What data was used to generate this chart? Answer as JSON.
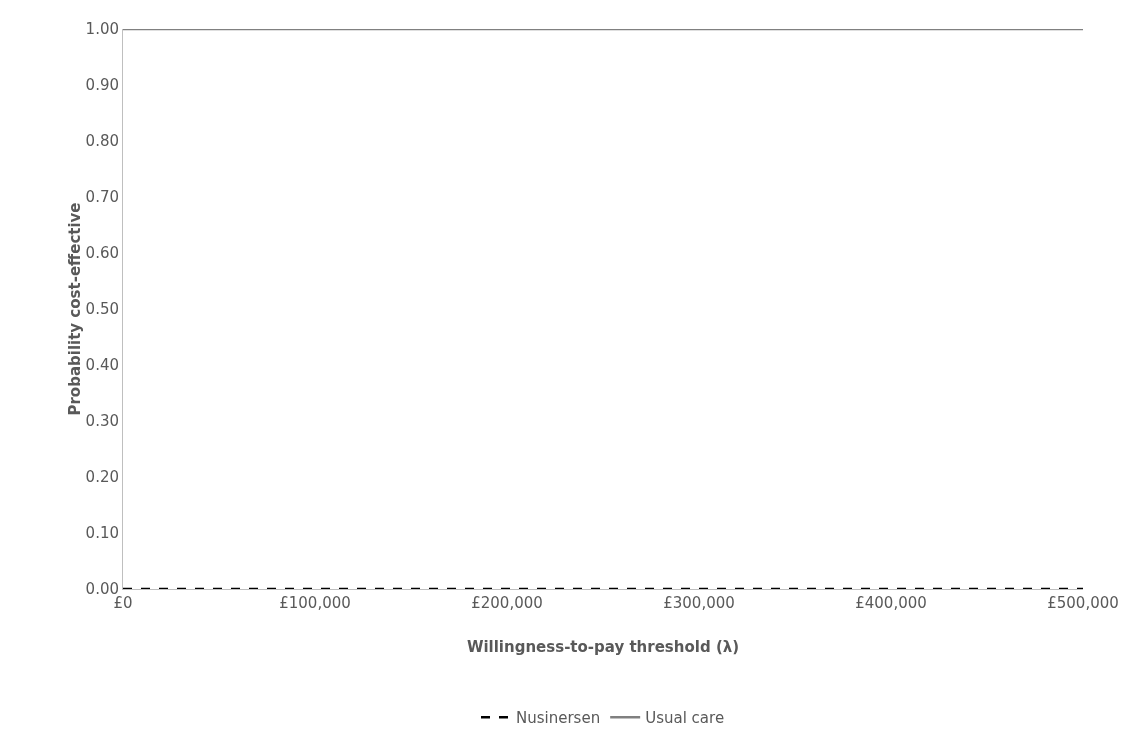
{
  "chart_data": {
    "type": "line",
    "xlabel": "Willingness-to-pay threshold (λ)",
    "ylabel": "Probability cost-effective",
    "x": [
      0,
      500000
    ],
    "series": [
      {
        "name": "Nusinersen",
        "color": "#000000",
        "values": [
          0,
          0
        ],
        "line_style": "dashed"
      },
      {
        "name": "Usual care",
        "color": "#808080",
        "values": [
          1,
          1
        ],
        "line_style": "solid"
      }
    ],
    "xlim": [
      0,
      500000
    ],
    "xticks": [
      {
        "value": 0,
        "label": "£0"
      },
      {
        "value": 100000,
        "label": "£100,000"
      },
      {
        "value": 200000,
        "label": "£200,000"
      },
      {
        "value": 300000,
        "label": "£300,000"
      },
      {
        "value": 400000,
        "label": "£400,000"
      },
      {
        "value": 500000,
        "label": "£500,000"
      }
    ],
    "ylim": [
      0,
      1
    ],
    "yticks": [
      {
        "value": 0,
        "label": "0.00"
      },
      {
        "value": 0.1,
        "label": "0.10"
      },
      {
        "value": 0.2,
        "label": "0.20"
      },
      {
        "value": 0.3,
        "label": "0.30"
      },
      {
        "value": 0.4,
        "label": "0.40"
      },
      {
        "value": 0.5,
        "label": "0.50"
      },
      {
        "value": 0.6,
        "label": "0.60"
      },
      {
        "value": 0.7,
        "label": "0.70"
      },
      {
        "value": 0.8,
        "label": "0.80"
      },
      {
        "value": 0.9,
        "label": "0.90"
      },
      {
        "value": 1,
        "label": "1.00"
      }
    ],
    "grid": false,
    "legend": "bottom",
    "marker": "none"
  }
}
